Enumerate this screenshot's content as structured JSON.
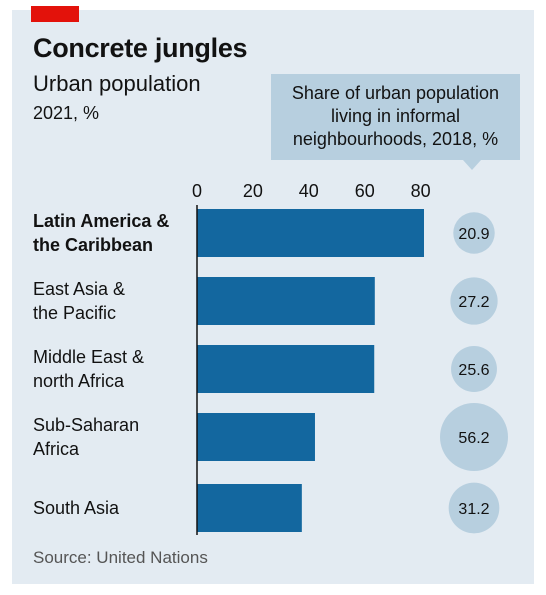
{
  "chart_data": {
    "type": "bar",
    "orientation": "horizontal",
    "title": "Concrete jungles",
    "subtitle": "Urban population",
    "unit_label": "2021, %",
    "source": "Source: United Nations",
    "categories": [
      [
        "Latin America &",
        "the Caribbean"
      ],
      [
        "East Asia &",
        "the Pacific"
      ],
      [
        "Middle East &",
        "north Africa"
      ],
      [
        "Sub-Saharan",
        "Africa"
      ],
      [
        "South Asia"
      ]
    ],
    "highlighted_category_index": 0,
    "values": [
      81.2,
      63.6,
      63.4,
      42.2,
      37.5
    ],
    "xlim": [
      0,
      80
    ],
    "xticks": [
      "0",
      "20",
      "40",
      "60",
      "80"
    ],
    "bar_color": "#13679f",
    "secondary_series": {
      "name": "Share of urban population living in informal neighbourhoods, 2018, %",
      "name_lines": [
        "Share of urban population",
        "living in informal",
        "neighbourhoods, 2018, %"
      ],
      "encoding": "bubble",
      "color": "#b7cfdf",
      "values": [
        20.9,
        27.2,
        25.6,
        56.2,
        31.2
      ],
      "labels": [
        "20.9",
        "27.2",
        "25.6",
        "56.2",
        "31.2"
      ]
    },
    "grid": false
  },
  "brand_color": "#e3120b"
}
